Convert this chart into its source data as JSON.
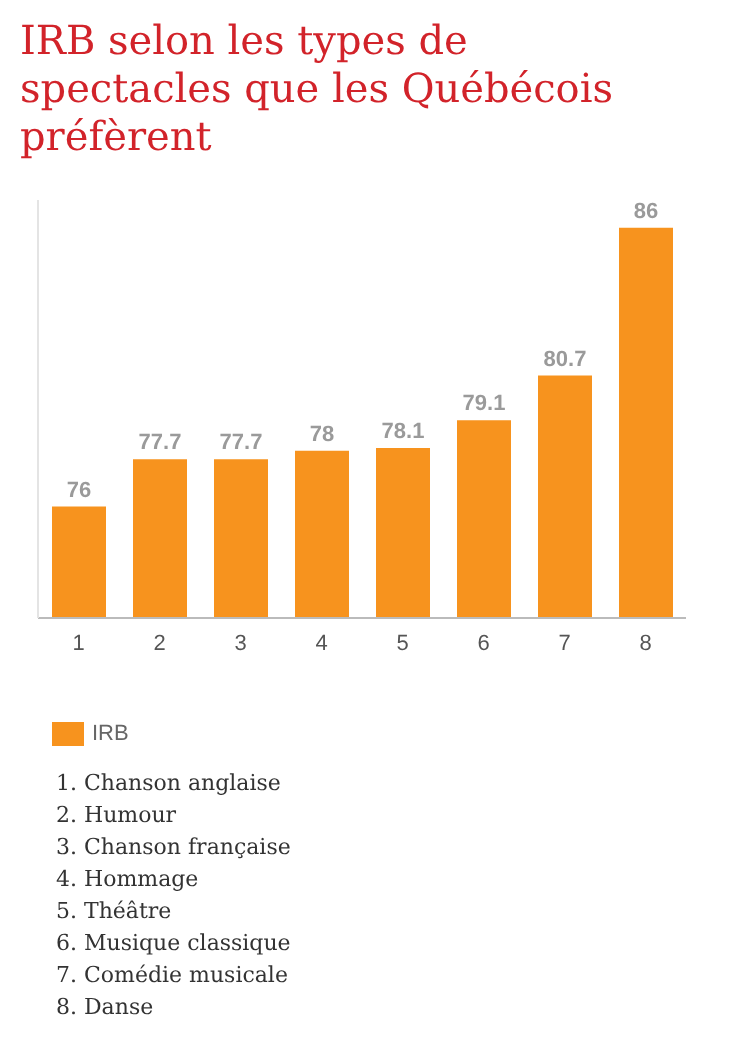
{
  "chart_data": {
    "type": "bar",
    "title": "IRB selon les types de spectacles que les Québécois préfèrent",
    "categories": [
      "1",
      "2",
      "3",
      "4",
      "5",
      "6",
      "7",
      "8"
    ],
    "series": [
      {
        "name": "IRB",
        "color": "#f7931e",
        "values": [
          76,
          77.7,
          77.7,
          78,
          78.1,
          79.1,
          80.7,
          86
        ]
      }
    ],
    "ylim": [
      72,
      87
    ],
    "tick_labels": "x",
    "data_labels": true,
    "legend": "bottom",
    "annotations": [
      "1. Chanson anglaise",
      "2. Humour",
      "3. Chanson française",
      "4. Hommage",
      "5. Théâtre",
      "6. Musique classique",
      "7. Comédie musicale",
      "8. Danse"
    ]
  }
}
